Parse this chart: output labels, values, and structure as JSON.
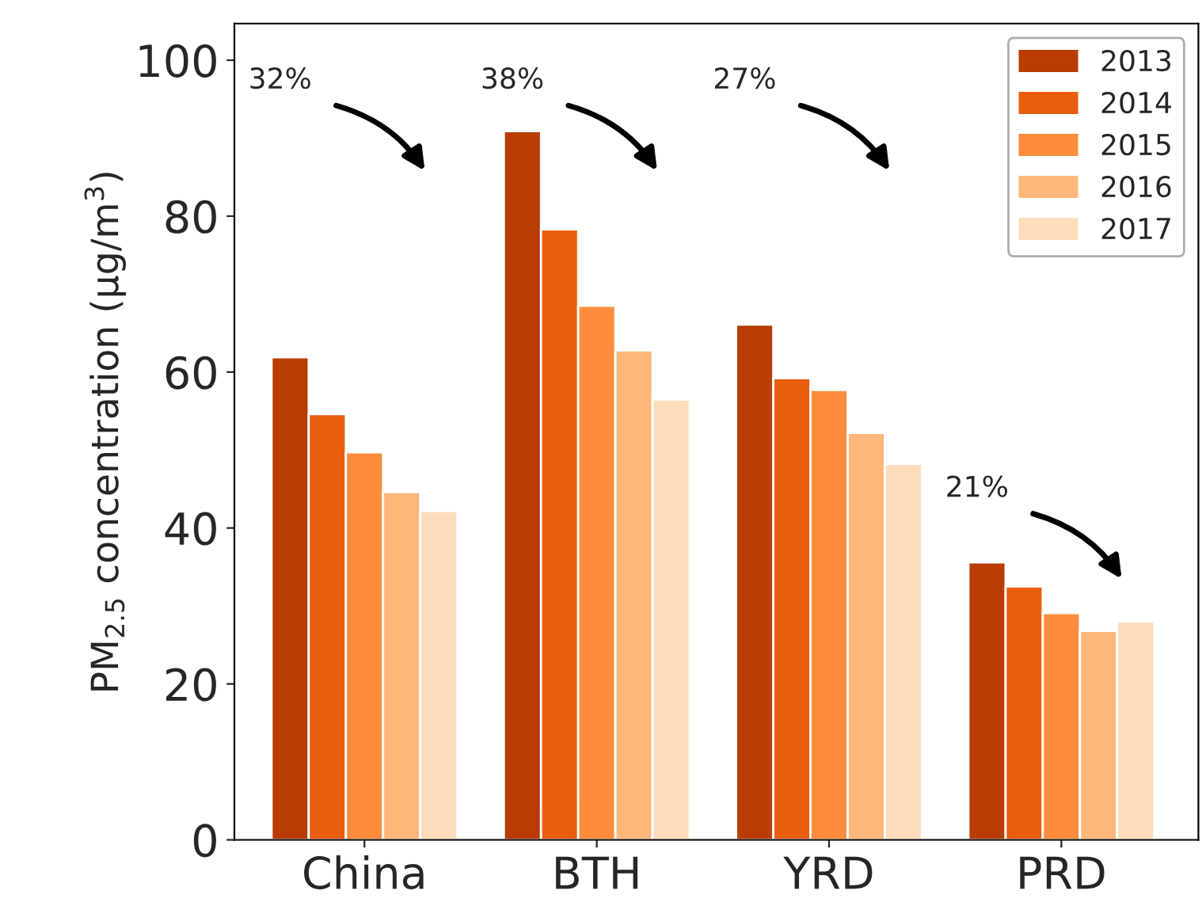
{
  "chart_data": {
    "type": "bar",
    "ylabel": "PM$_{2.5}$ concentration (μg/m$^{3}$)",
    "categories": [
      "China",
      "BTH",
      "YRD",
      "PRD"
    ],
    "series": [
      {
        "name": "2013",
        "color": "#b83c03",
        "values": [
          61.9,
          90.9,
          66.1,
          35.6
        ]
      },
      {
        "name": "2014",
        "color": "#e95d0f",
        "values": [
          54.6,
          78.3,
          59.2,
          32.5
        ]
      },
      {
        "name": "2015",
        "color": "#fd8c3d",
        "values": [
          49.7,
          68.5,
          57.7,
          29.1
        ]
      },
      {
        "name": "2016",
        "color": "#fdb77a",
        "values": [
          44.6,
          62.8,
          52.2,
          26.8
        ]
      },
      {
        "name": "2017",
        "color": "#fedcbb",
        "values": [
          42.2,
          56.5,
          48.2,
          28.0
        ]
      }
    ],
    "ylim": [
      0,
      104.7
    ],
    "yticks": [
      0,
      20,
      40,
      60,
      80,
      100
    ],
    "annotations": [
      "32%",
      "38%",
      "27%",
      "21%"
    ],
    "grid": false,
    "legend": "top right"
  }
}
